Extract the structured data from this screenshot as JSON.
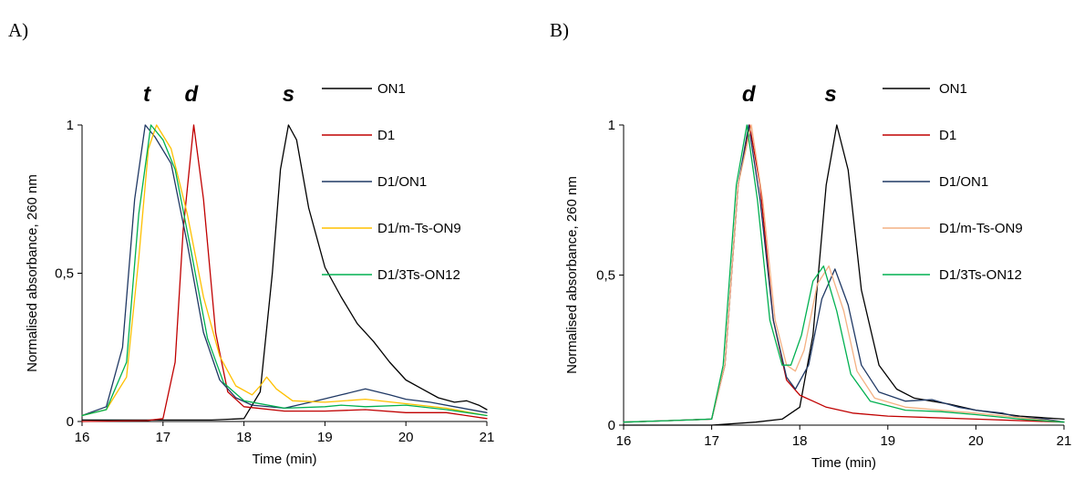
{
  "chart_data": [
    {
      "panel_label": "A)",
      "type": "line",
      "xlabel": "Time (min)",
      "ylabel": "Normalised absorbance, 260 nm",
      "xlim": [
        16,
        21
      ],
      "ylim": [
        0,
        1
      ],
      "x_ticks": [
        "16",
        "17",
        "18",
        "19",
        "20",
        "21"
      ],
      "y_ticks": [
        "0",
        "0,5",
        "1"
      ],
      "peak_labels": [
        {
          "text": "t",
          "x": 16.8
        },
        {
          "text": "d",
          "x": 17.35
        },
        {
          "text": "s",
          "x": 18.55
        }
      ],
      "legend_position": "right",
      "series": [
        {
          "name": "ON1",
          "color": "#000000",
          "points": [
            [
              16,
              0.005
            ],
            [
              17,
              0.005
            ],
            [
              17.6,
              0.005
            ],
            [
              18.0,
              0.01
            ],
            [
              18.2,
              0.1
            ],
            [
              18.35,
              0.5
            ],
            [
              18.45,
              0.85
            ],
            [
              18.55,
              1.0
            ],
            [
              18.65,
              0.95
            ],
            [
              18.8,
              0.72
            ],
            [
              19.0,
              0.52
            ],
            [
              19.2,
              0.42
            ],
            [
              19.4,
              0.33
            ],
            [
              19.6,
              0.27
            ],
            [
              19.8,
              0.2
            ],
            [
              20.0,
              0.14
            ],
            [
              20.2,
              0.11
            ],
            [
              20.4,
              0.08
            ],
            [
              20.6,
              0.065
            ],
            [
              20.75,
              0.07
            ],
            [
              20.9,
              0.055
            ],
            [
              21,
              0.04
            ]
          ]
        },
        {
          "name": "D1",
          "color": "#c00000",
          "points": [
            [
              16,
              0.0
            ],
            [
              16.8,
              0.003
            ],
            [
              17.0,
              0.01
            ],
            [
              17.15,
              0.2
            ],
            [
              17.25,
              0.65
            ],
            [
              17.38,
              1.0
            ],
            [
              17.5,
              0.75
            ],
            [
              17.65,
              0.3
            ],
            [
              17.8,
              0.1
            ],
            [
              18.0,
              0.05
            ],
            [
              18.5,
              0.035
            ],
            [
              19.0,
              0.035
            ],
            [
              19.5,
              0.04
            ],
            [
              20.0,
              0.03
            ],
            [
              20.5,
              0.03
            ],
            [
              21,
              0.01
            ]
          ]
        },
        {
          "name": "D1/ON1",
          "color": "#1f3864",
          "points": [
            [
              16,
              0.02
            ],
            [
              16.3,
              0.05
            ],
            [
              16.5,
              0.25
            ],
            [
              16.65,
              0.75
            ],
            [
              16.78,
              1.0
            ],
            [
              16.9,
              0.96
            ],
            [
              17.1,
              0.87
            ],
            [
              17.3,
              0.6
            ],
            [
              17.5,
              0.3
            ],
            [
              17.7,
              0.14
            ],
            [
              17.9,
              0.08
            ],
            [
              18.1,
              0.055
            ],
            [
              18.5,
              0.045
            ],
            [
              18.9,
              0.07
            ],
            [
              19.2,
              0.09
            ],
            [
              19.5,
              0.11
            ],
            [
              19.8,
              0.09
            ],
            [
              20.0,
              0.075
            ],
            [
              20.3,
              0.065
            ],
            [
              20.6,
              0.05
            ],
            [
              21,
              0.03
            ]
          ]
        },
        {
          "name": "D1/m-Ts-ON9",
          "color": "#ffc000",
          "points": [
            [
              16,
              0.02
            ],
            [
              16.3,
              0.04
            ],
            [
              16.55,
              0.15
            ],
            [
              16.7,
              0.55
            ],
            [
              16.82,
              0.92
            ],
            [
              16.92,
              1.0
            ],
            [
              17.1,
              0.92
            ],
            [
              17.3,
              0.7
            ],
            [
              17.5,
              0.42
            ],
            [
              17.7,
              0.22
            ],
            [
              17.9,
              0.12
            ],
            [
              18.1,
              0.09
            ],
            [
              18.2,
              0.12
            ],
            [
              18.28,
              0.15
            ],
            [
              18.4,
              0.11
            ],
            [
              18.6,
              0.07
            ],
            [
              19.0,
              0.065
            ],
            [
              19.5,
              0.075
            ],
            [
              20.0,
              0.06
            ],
            [
              20.5,
              0.045
            ],
            [
              21,
              0.02
            ]
          ]
        },
        {
          "name": "D1/3Ts-ON12",
          "color": "#00b050",
          "points": [
            [
              16,
              0.02
            ],
            [
              16.3,
              0.04
            ],
            [
              16.55,
              0.2
            ],
            [
              16.7,
              0.7
            ],
            [
              16.85,
              1.0
            ],
            [
              17.0,
              0.95
            ],
            [
              17.15,
              0.85
            ],
            [
              17.35,
              0.57
            ],
            [
              17.55,
              0.28
            ],
            [
              17.75,
              0.13
            ],
            [
              18.0,
              0.07
            ],
            [
              18.5,
              0.045
            ],
            [
              19.0,
              0.05
            ],
            [
              19.2,
              0.055
            ],
            [
              19.5,
              0.05
            ],
            [
              20.0,
              0.055
            ],
            [
              20.5,
              0.04
            ],
            [
              21,
              0.02
            ]
          ]
        }
      ]
    },
    {
      "panel_label": "B)",
      "type": "line",
      "xlabel": "Time (min)",
      "ylabel": "Normalised absorbance, 260 nm",
      "xlim": [
        16,
        21
      ],
      "ylim": [
        0,
        1
      ],
      "x_ticks": [
        "16",
        "17",
        "18",
        "19",
        "20",
        "21"
      ],
      "y_ticks": [
        "0",
        "0,5",
        "1"
      ],
      "peak_labels": [
        {
          "text": "d",
          "x": 17.42
        },
        {
          "text": "s",
          "x": 18.35
        }
      ],
      "legend_position": "right",
      "series": [
        {
          "name": "ON1",
          "color": "#000000",
          "points": [
            [
              16,
              0.0
            ],
            [
              17.0,
              0.0
            ],
            [
              17.5,
              0.01
            ],
            [
              17.8,
              0.02
            ],
            [
              18.0,
              0.06
            ],
            [
              18.15,
              0.3
            ],
            [
              18.3,
              0.8
            ],
            [
              18.42,
              1.0
            ],
            [
              18.55,
              0.85
            ],
            [
              18.7,
              0.45
            ],
            [
              18.9,
              0.2
            ],
            [
              19.1,
              0.12
            ],
            [
              19.3,
              0.09
            ],
            [
              19.5,
              0.08
            ],
            [
              19.7,
              0.07
            ],
            [
              20.0,
              0.05
            ],
            [
              20.5,
              0.03
            ],
            [
              21,
              0.02
            ]
          ]
        },
        {
          "name": "D1",
          "color": "#c00000",
          "points": [
            [
              16,
              0.01
            ],
            [
              16.5,
              0.015
            ],
            [
              17.0,
              0.02
            ],
            [
              17.15,
              0.2
            ],
            [
              17.3,
              0.8
            ],
            [
              17.43,
              1.0
            ],
            [
              17.55,
              0.8
            ],
            [
              17.7,
              0.35
            ],
            [
              17.85,
              0.15
            ],
            [
              18.0,
              0.1
            ],
            [
              18.3,
              0.06
            ],
            [
              18.6,
              0.04
            ],
            [
              19.0,
              0.03
            ],
            [
              20.0,
              0.02
            ],
            [
              21,
              0.01
            ]
          ]
        },
        {
          "name": "D1/ON1",
          "color": "#1f3864",
          "points": [
            [
              16,
              0.01
            ],
            [
              16.5,
              0.015
            ],
            [
              17.0,
              0.02
            ],
            [
              17.15,
              0.2
            ],
            [
              17.3,
              0.8
            ],
            [
              17.42,
              1.0
            ],
            [
              17.55,
              0.75
            ],
            [
              17.7,
              0.35
            ],
            [
              17.85,
              0.16
            ],
            [
              17.95,
              0.12
            ],
            [
              18.1,
              0.2
            ],
            [
              18.25,
              0.42
            ],
            [
              18.4,
              0.52
            ],
            [
              18.55,
              0.4
            ],
            [
              18.7,
              0.2
            ],
            [
              18.9,
              0.11
            ],
            [
              19.2,
              0.08
            ],
            [
              19.5,
              0.085
            ],
            [
              19.8,
              0.06
            ],
            [
              20.0,
              0.05
            ],
            [
              20.3,
              0.04
            ],
            [
              20.5,
              0.025
            ],
            [
              20.8,
              0.02
            ],
            [
              21,
              0.01
            ]
          ]
        },
        {
          "name": "D1/m-Ts-ON9",
          "color": "#f4b183",
          "points": [
            [
              16,
              0.01
            ],
            [
              16.5,
              0.015
            ],
            [
              17.0,
              0.02
            ],
            [
              17.15,
              0.2
            ],
            [
              17.3,
              0.8
            ],
            [
              17.45,
              1.0
            ],
            [
              17.58,
              0.75
            ],
            [
              17.72,
              0.35
            ],
            [
              17.85,
              0.2
            ],
            [
              17.95,
              0.18
            ],
            [
              18.05,
              0.25
            ],
            [
              18.2,
              0.47
            ],
            [
              18.33,
              0.53
            ],
            [
              18.5,
              0.38
            ],
            [
              18.65,
              0.18
            ],
            [
              18.85,
              0.09
            ],
            [
              19.2,
              0.06
            ],
            [
              19.6,
              0.05
            ],
            [
              20.0,
              0.04
            ],
            [
              20.5,
              0.025
            ],
            [
              21,
              0.01
            ]
          ]
        },
        {
          "name": "D1/3Ts-ON12",
          "color": "#00b050",
          "points": [
            [
              16,
              0.01
            ],
            [
              16.5,
              0.015
            ],
            [
              17.0,
              0.02
            ],
            [
              17.13,
              0.2
            ],
            [
              17.28,
              0.8
            ],
            [
              17.4,
              1.0
            ],
            [
              17.52,
              0.75
            ],
            [
              17.66,
              0.35
            ],
            [
              17.8,
              0.2
            ],
            [
              17.9,
              0.2
            ],
            [
              18.02,
              0.3
            ],
            [
              18.15,
              0.48
            ],
            [
              18.27,
              0.53
            ],
            [
              18.42,
              0.38
            ],
            [
              18.58,
              0.17
            ],
            [
              18.8,
              0.08
            ],
            [
              19.2,
              0.05
            ],
            [
              19.6,
              0.045
            ],
            [
              20.0,
              0.035
            ],
            [
              20.5,
              0.02
            ],
            [
              21,
              0.01
            ]
          ]
        }
      ]
    }
  ]
}
